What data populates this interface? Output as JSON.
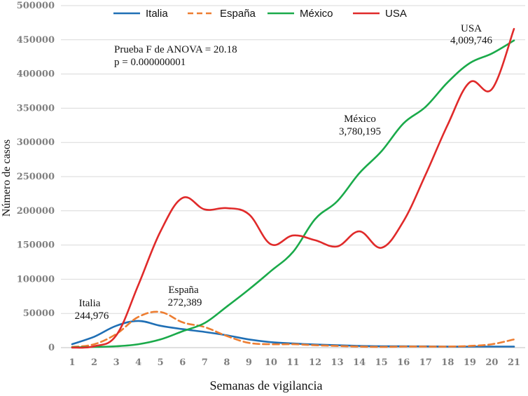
{
  "chart_data": {
    "type": "line",
    "title": "",
    "xlabel": "Semanas de vigilancia",
    "ylabel": "Número de casos",
    "x": [
      1,
      2,
      3,
      4,
      5,
      6,
      7,
      8,
      9,
      10,
      11,
      12,
      13,
      14,
      15,
      16,
      17,
      18,
      19,
      20,
      21
    ],
    "ylim": [
      0,
      500000
    ],
    "yticks": [
      "0",
      "50000",
      "100000",
      "150000",
      "200000",
      "250000",
      "300000",
      "350000",
      "400000",
      "450000",
      "500000"
    ],
    "grid": true,
    "legend_position": "top",
    "series": [
      {
        "name": "Italia",
        "color": "#1f6fb5",
        "dash": false,
        "values": [
          5000,
          16000,
          32000,
          39000,
          32000,
          27000,
          23000,
          18000,
          12000,
          8000,
          6000,
          4500,
          3500,
          2500,
          2000,
          2000,
          1800,
          1500,
          1500,
          1500,
          1500
        ]
      },
      {
        "name": "España",
        "color": "#ed7d31",
        "dash": true,
        "values": [
          1000,
          5000,
          20000,
          45000,
          52000,
          37000,
          30000,
          17000,
          7000,
          5000,
          5000,
          3500,
          2500,
          1500,
          1000,
          1500,
          1500,
          1500,
          2500,
          5000,
          12000
        ]
      },
      {
        "name": "México",
        "color": "#1aaa4a",
        "dash": false,
        "values": [
          500,
          1000,
          2000,
          5000,
          12000,
          24000,
          36000,
          60000,
          85000,
          112000,
          140000,
          188000,
          214000,
          255000,
          287000,
          328000,
          352000,
          388000,
          416000,
          430000,
          449000
        ]
      },
      {
        "name": "USA",
        "color": "#e02a2a",
        "dash": false,
        "values": [
          0,
          2000,
          18000,
          92000,
          170000,
          219000,
          202000,
          204000,
          195000,
          151000,
          164000,
          157000,
          148000,
          170000,
          146000,
          185000,
          253000,
          326000,
          388000,
          378000,
          466000
        ]
      }
    ],
    "annotations": {
      "anova": "Prueba F de ANOVA = 20.18",
      "pvalue": "p = 0.000000001",
      "italia_name": "Italia",
      "italia_total": "244,976",
      "espana_name": "España",
      "espana_total": "272,389",
      "mexico_name": "México",
      "mexico_total": "3,780,195",
      "usa_name": "USA",
      "usa_total": "4,009,746"
    }
  }
}
